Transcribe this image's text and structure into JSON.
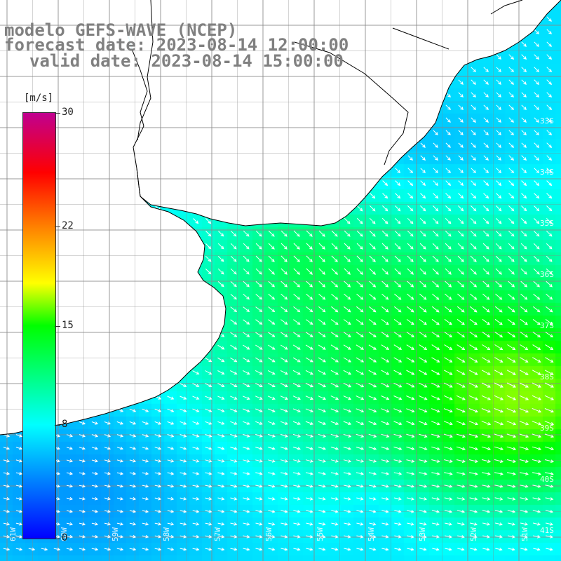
{
  "title": {
    "model": "modelo GEFS-WAVE (NCEP)",
    "forecast": "forecast date: 2023-08-14 12:00:00",
    "valid": "valid date: 2023-08-14 15:00:00"
  },
  "colorbar": {
    "unit": "[m/s]",
    "ticks": [
      {
        "value": 0,
        "label": "0"
      },
      {
        "value": 8,
        "label": "8"
      },
      {
        "value": 15,
        "label": "15"
      },
      {
        "value": 22,
        "label": "22"
      },
      {
        "value": 30,
        "label": "30"
      }
    ],
    "colors": [
      "#0000ff",
      "#00ffff",
      "#00ff00",
      "#ffff00",
      "#ff8000",
      "#ff0000",
      "#c00090"
    ]
  },
  "map": {
    "lat_labels": [
      "33S",
      "34S",
      "35S",
      "36S",
      "37S",
      "38S",
      "39S",
      "40S",
      "41S"
    ],
    "lon_labels": [
      "61W",
      "60W",
      "59W",
      "58W",
      "57W",
      "56W",
      "55W",
      "54W",
      "53W",
      "52W",
      "51W"
    ],
    "land_color": "#ffffff",
    "coast_color": "#000000",
    "grid_color": "#888888"
  },
  "chart_data": {
    "type": "heatmap",
    "variable": "wind speed",
    "unit": "m/s",
    "colorbar_range": [
      0,
      30
    ],
    "approx_speed_ranges_m_s": {
      "river_plate_estuary": [
        9,
        13
      ],
      "open_ocean_center_east": [
        12,
        16
      ],
      "southeast_max": [
        17,
        19
      ],
      "southwest_coastal": [
        5,
        9
      ]
    },
    "prevailing_direction": "toward southeast"
  }
}
